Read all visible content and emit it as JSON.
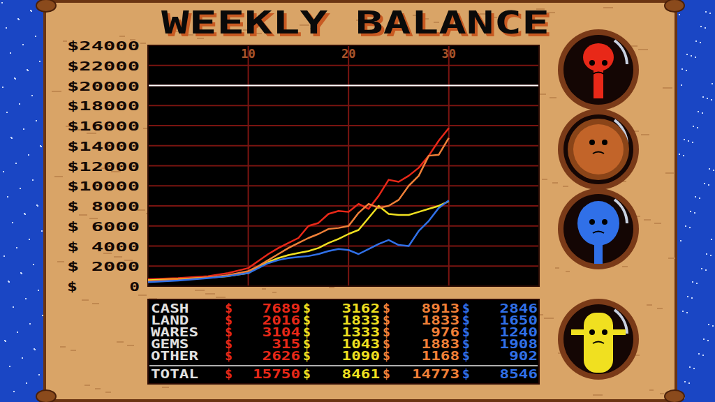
{
  "chart_data": {
    "type": "line",
    "title": "WEEKLY BALANCE",
    "x": [
      0,
      3,
      6,
      8,
      10,
      11,
      12,
      13,
      14,
      15,
      16,
      17,
      18,
      19,
      20,
      21,
      22,
      23,
      24,
      25,
      26,
      27,
      28,
      29,
      30
    ],
    "xlim": [
      0,
      39
    ],
    "xticks": [
      10,
      20,
      30
    ],
    "ylim": [
      0,
      24000
    ],
    "yticks": [
      {
        "value": 0,
        "label": "$     0"
      },
      {
        "value": 2000,
        "label": "$ 2000"
      },
      {
        "value": 4000,
        "label": "$ 4000"
      },
      {
        "value": 6000,
        "label": "$ 6000"
      },
      {
        "value": 8000,
        "label": "$ 8000"
      },
      {
        "value": 10000,
        "label": "$10000"
      },
      {
        "value": 12000,
        "label": "$12000"
      },
      {
        "value": 14000,
        "label": "$14000"
      },
      {
        "value": 16000,
        "label": "$16000"
      },
      {
        "value": 18000,
        "label": "$18000"
      },
      {
        "value": 20000,
        "label": "$20000"
      },
      {
        "value": 22000,
        "label": "$22000"
      },
      {
        "value": 24000,
        "label": "$24000"
      }
    ],
    "grid": true,
    "target": 20000,
    "series": [
      {
        "color": "#e82818",
        "values": [
          700,
          800,
          1000,
          1300,
          1800,
          2500,
          3200,
          3800,
          4300,
          4800,
          6000,
          6300,
          7200,
          7500,
          7400,
          8200,
          7700,
          9000,
          10600,
          10400,
          11000,
          11800,
          13000,
          14500,
          15750
        ]
      },
      {
        "color": "#f0e020",
        "values": [
          600,
          700,
          850,
          1000,
          1300,
          1900,
          2400,
          2800,
          3100,
          3300,
          3500,
          3800,
          4300,
          4700,
          5200,
          5600,
          6800,
          8000,
          7200,
          7100,
          7100,
          7400,
          7700,
          8000,
          8461
        ]
      },
      {
        "color": "#f08038",
        "values": [
          500,
          650,
          850,
          1100,
          1500,
          2000,
          2600,
          3200,
          3800,
          4300,
          4800,
          5200,
          5700,
          5800,
          6000,
          7300,
          8200,
          7800,
          8000,
          8600,
          10000,
          11000,
          13000,
          13100,
          14773
        ]
      },
      {
        "color": "#3070e8",
        "values": [
          400,
          550,
          800,
          1000,
          1300,
          1800,
          2300,
          2600,
          2800,
          2900,
          3000,
          3200,
          3500,
          3700,
          3600,
          3200,
          3700,
          4200,
          4600,
          4100,
          4000,
          5500,
          6500,
          7800,
          8546
        ]
      }
    ]
  },
  "table": {
    "currency": "$",
    "rows": [
      {
        "label": "CASH",
        "values": [
          7689,
          3162,
          8913,
          2846
        ]
      },
      {
        "label": "LAND",
        "values": [
          2016,
          1833,
          1833,
          1650
        ]
      },
      {
        "label": "WARES",
        "values": [
          3104,
          1333,
          976,
          1240
        ]
      },
      {
        "label": "GEMS",
        "values": [
          315,
          1043,
          1883,
          1908
        ]
      },
      {
        "label": "OTHER",
        "values": [
          2626,
          1090,
          1168,
          902
        ]
      }
    ],
    "total": {
      "label": "TOTAL",
      "values": [
        15750,
        8461,
        14773,
        8546
      ]
    }
  }
}
